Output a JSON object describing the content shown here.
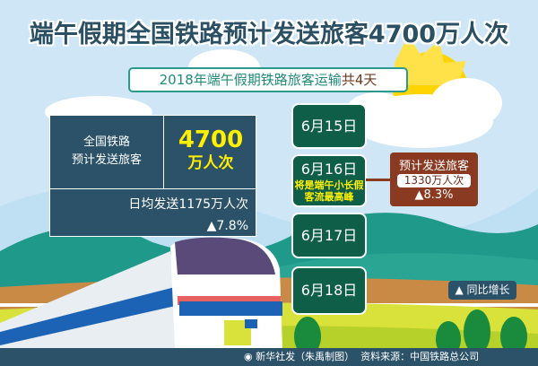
{
  "title": "端午假期全国铁路预计发送旅客4700万人次",
  "subtitle": {
    "text": "2018年端午假期铁路旅客运输",
    "highlight": "共4天"
  },
  "summary": {
    "label_line1": "全国铁路",
    "label_line2": "预计发送旅客",
    "value": "4700",
    "unit": "万人次",
    "daily": "日均发送1175万人次",
    "growth": "▲7.8%"
  },
  "dates": [
    {
      "label": "6月15日"
    },
    {
      "label": "6月16日",
      "note_line1": "将是端午小长假",
      "note_line2": "客流最高峰"
    },
    {
      "label": "6月17日"
    },
    {
      "label": "6月18日"
    }
  ],
  "peak": {
    "label": "预计发送旅客",
    "value": "1330万人次",
    "growth": "▲8.3%"
  },
  "legend": {
    "label": "▲ 同比增长"
  },
  "footer": {
    "credit": "新华社发（朱禹制图）",
    "source": "资料来源：中国铁路总公司"
  },
  "colors": {
    "title": "#2b4f63",
    "panel": "#2b5268",
    "date_box": "#0f5e48",
    "peak_box": "#8b3a22",
    "highlight": "#ffef00"
  }
}
